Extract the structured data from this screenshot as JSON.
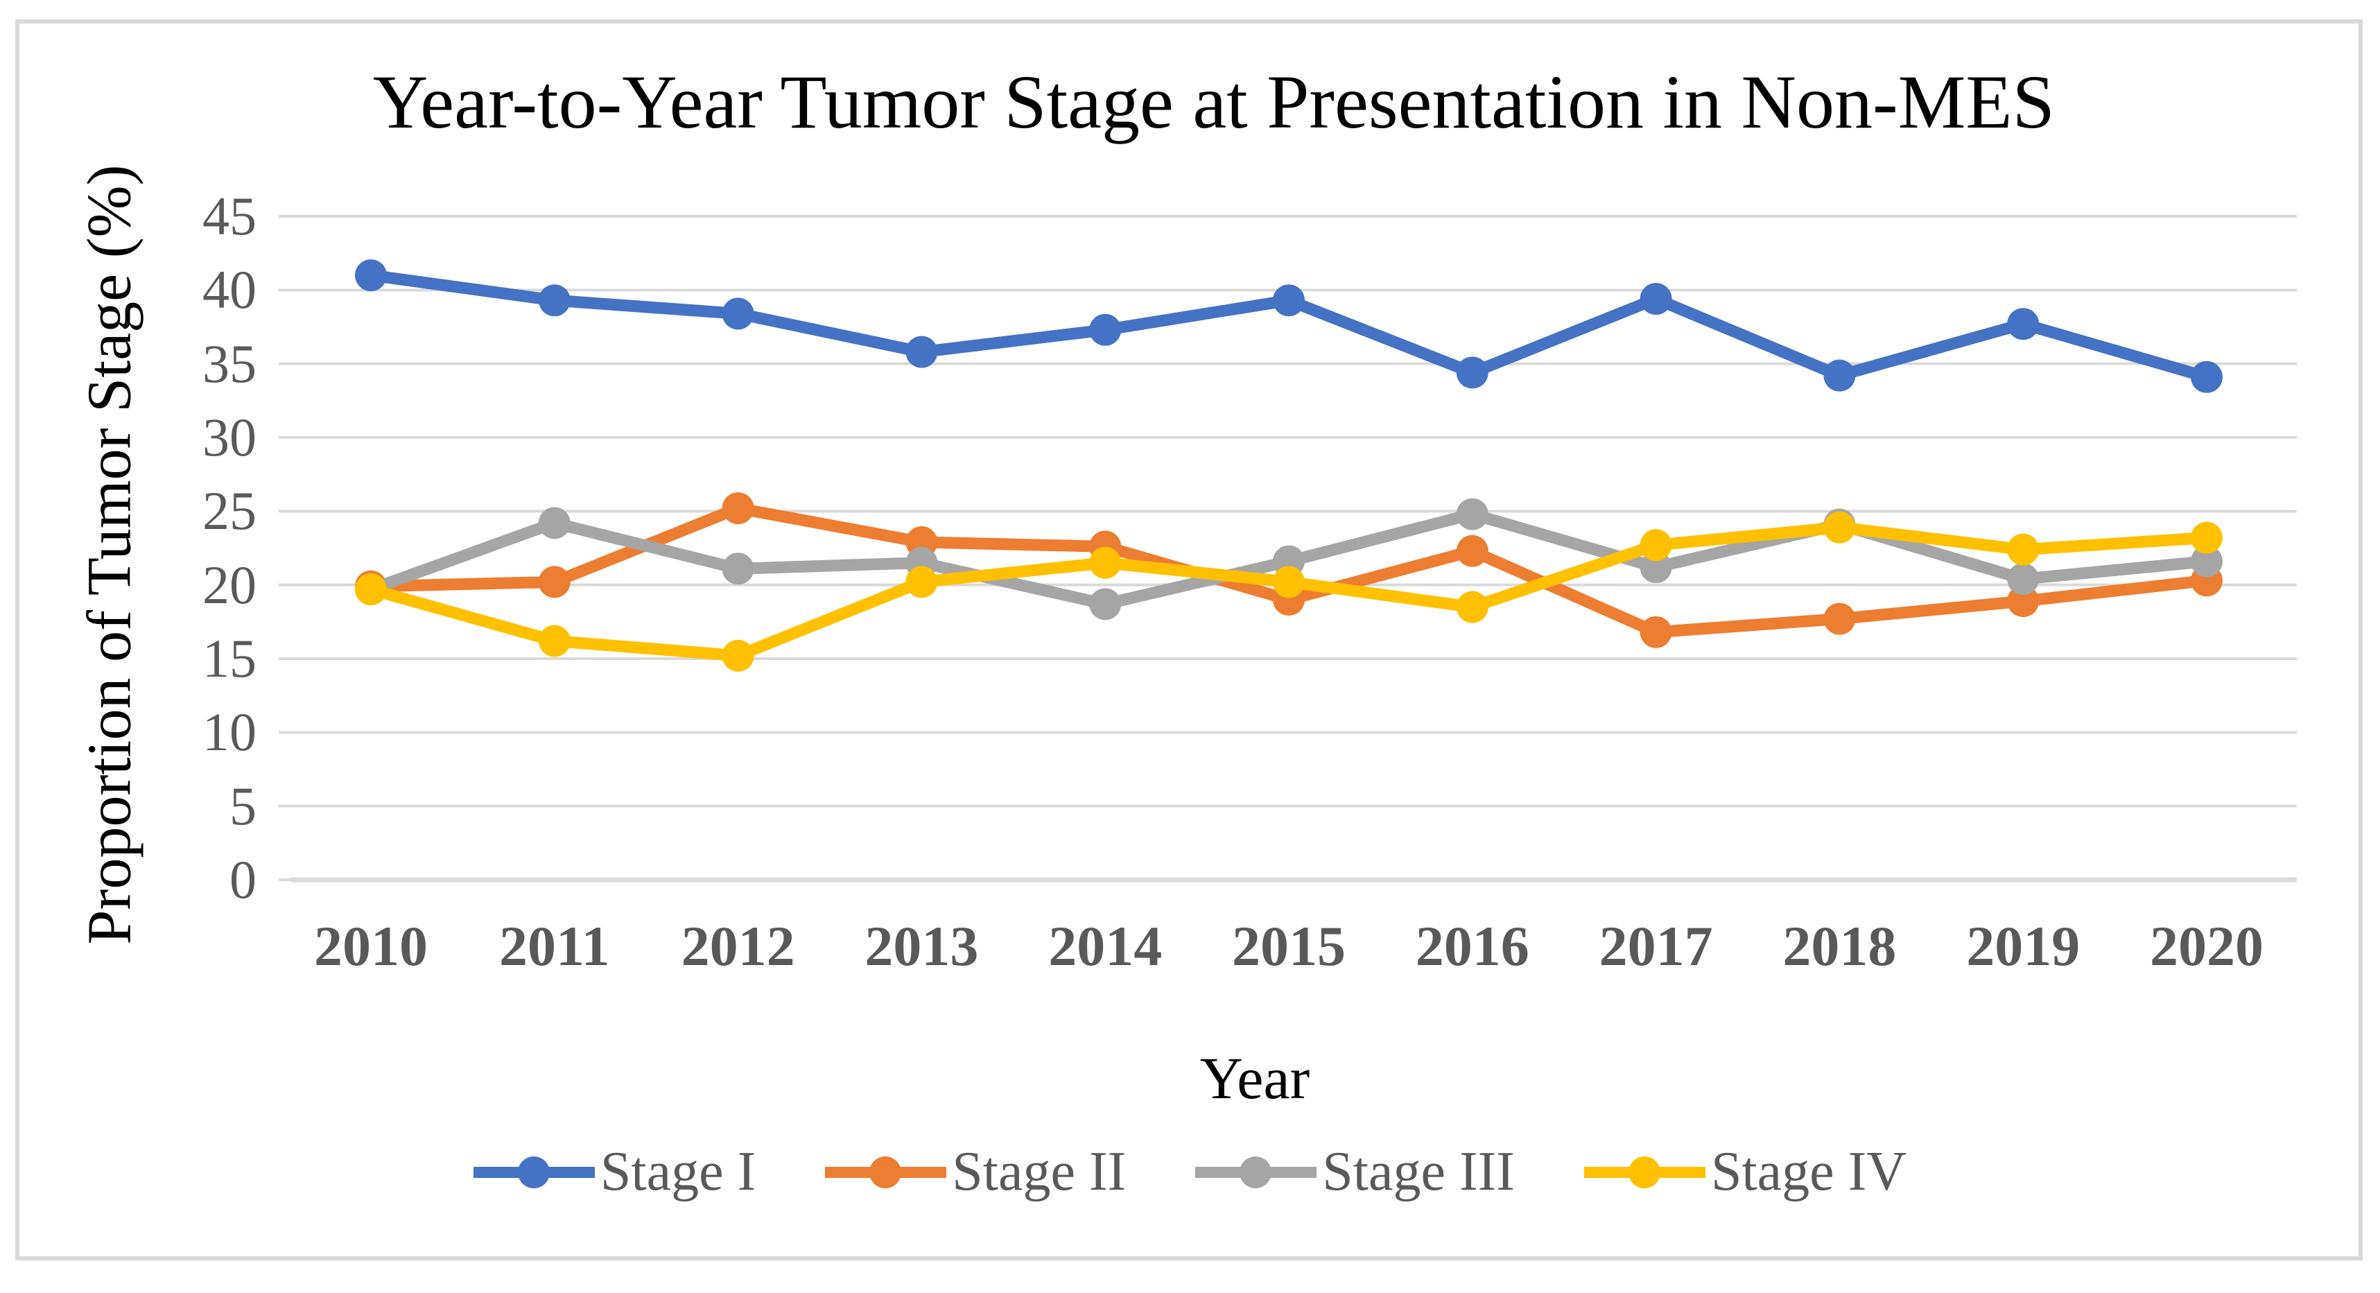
{
  "chart_data": {
    "type": "line",
    "title": "Year-to-Year Tumor Stage at Presentation in Non-MES",
    "xlabel": "Year",
    "ylabel": "Proportion of Tumor Stage (%)",
    "categories": [
      "2010",
      "2011",
      "2012",
      "2013",
      "2014",
      "2015",
      "2016",
      "2017",
      "2018",
      "2019",
      "2020"
    ],
    "y_ticks": [
      0,
      5,
      10,
      15,
      20,
      25,
      30,
      35,
      40,
      45
    ],
    "ylim": [
      0,
      45
    ],
    "grid": true,
    "legend_position": "bottom",
    "marker": "circle",
    "series": [
      {
        "name": "Stage I",
        "color": "#4472C4",
        "values": [
          41.0,
          39.3,
          38.4,
          35.8,
          37.3,
          39.3,
          34.4,
          39.4,
          34.2,
          37.7,
          34.1
        ]
      },
      {
        "name": "Stage II",
        "color": "#ED7D31",
        "values": [
          19.9,
          20.2,
          25.2,
          22.9,
          22.6,
          19.0,
          22.3,
          16.8,
          17.7,
          18.9,
          20.3
        ]
      },
      {
        "name": "Stage III",
        "color": "#A5A5A5",
        "values": [
          19.7,
          24.2,
          21.1,
          21.5,
          18.7,
          21.6,
          24.8,
          21.2,
          24.1,
          20.4,
          21.6
        ]
      },
      {
        "name": "Stage IV",
        "color": "#FFC000",
        "values": [
          19.7,
          16.2,
          15.2,
          20.2,
          21.5,
          20.2,
          18.5,
          22.7,
          23.9,
          22.4,
          23.2
        ]
      }
    ],
    "colors": {
      "gridline": "#D9D9D9",
      "axis_line": "#D9D9D9",
      "figure_border": "#D9D9D9",
      "tick_label": "#595959",
      "legend_label": "#595959",
      "title": "#000000",
      "background": "#FFFFFF"
    }
  }
}
